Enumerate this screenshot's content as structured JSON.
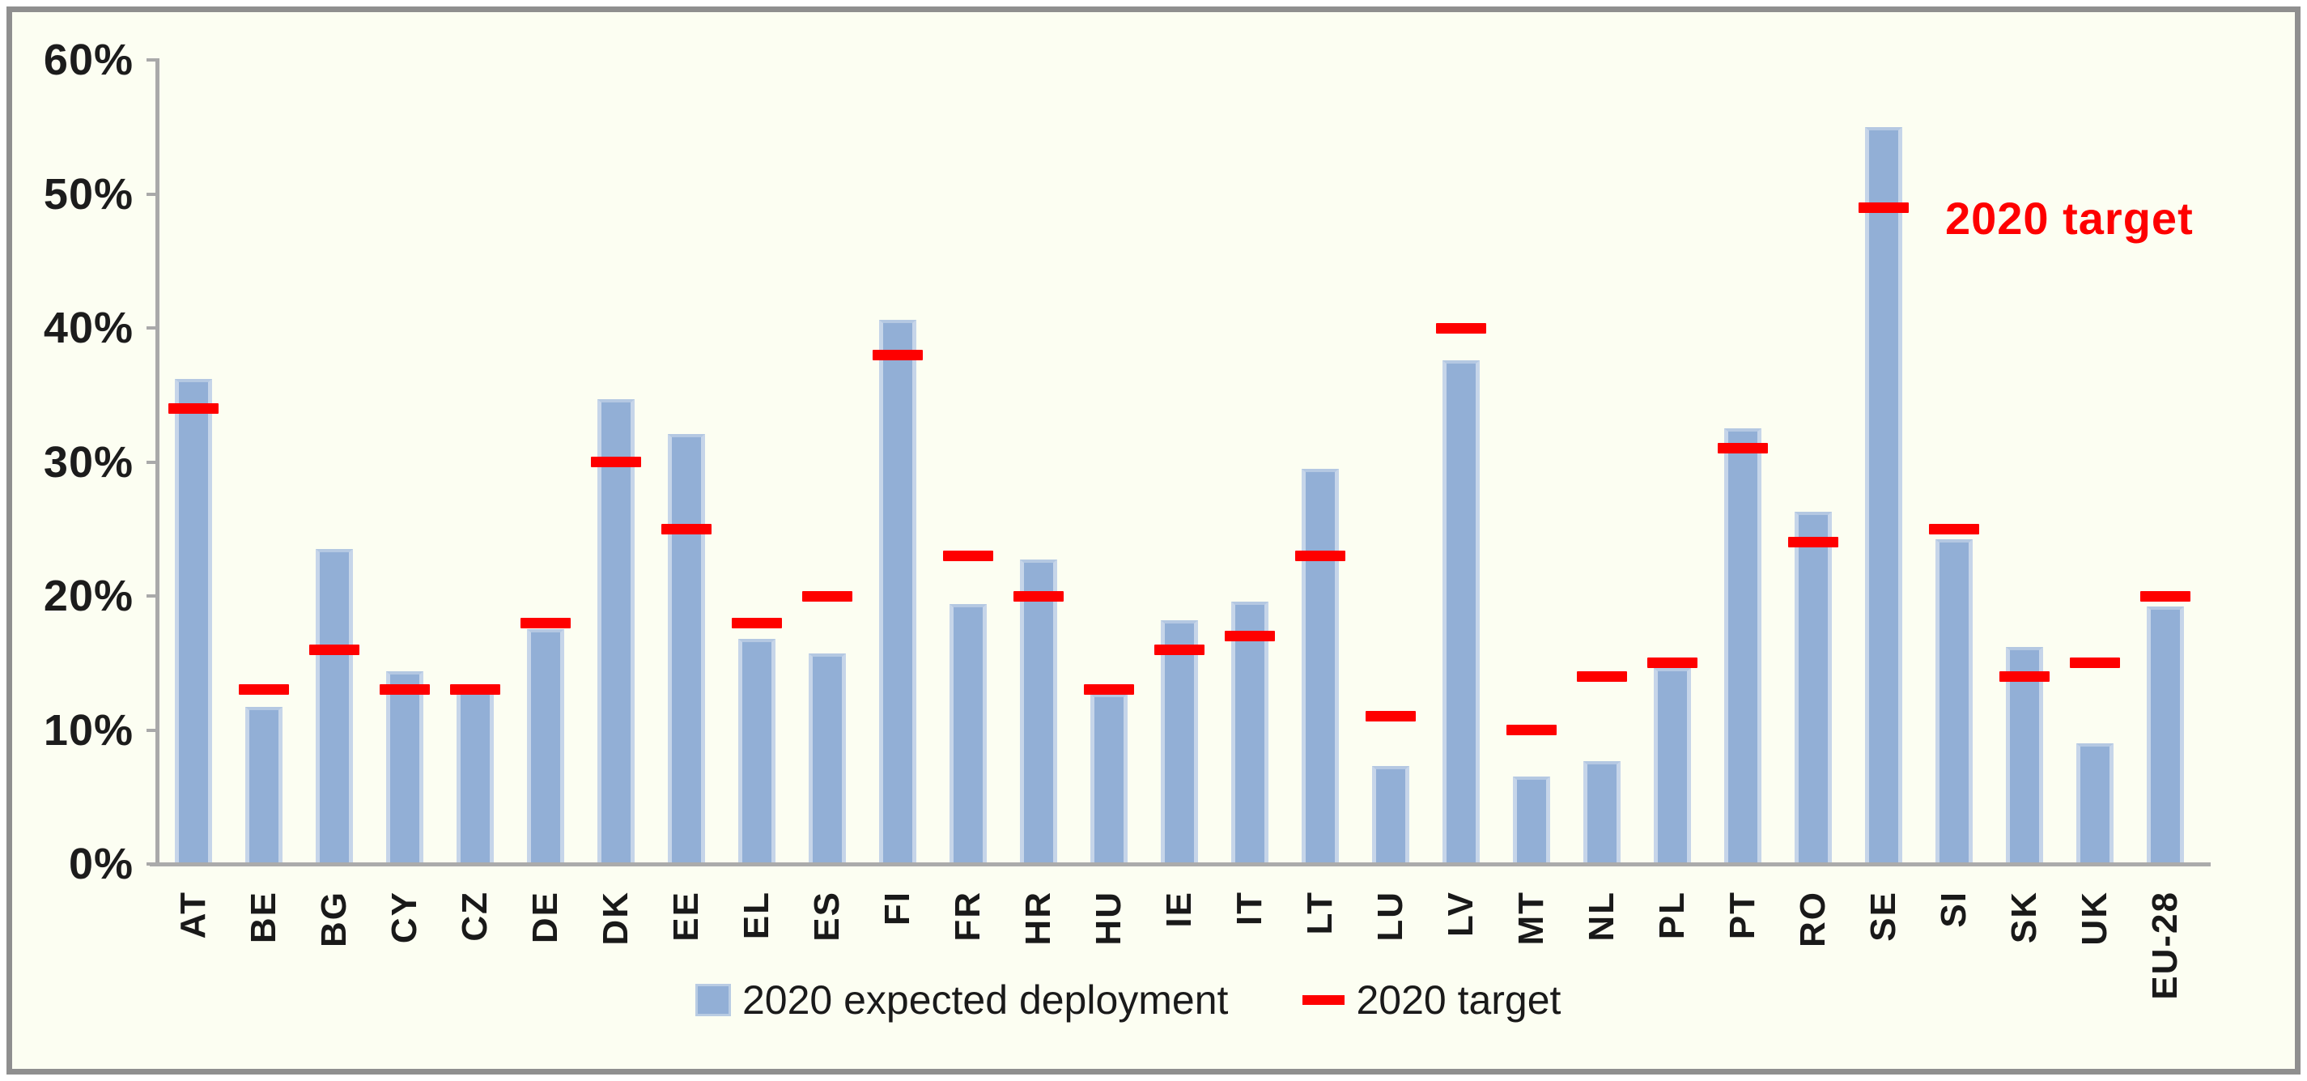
{
  "chart_data": {
    "type": "bar",
    "categories": [
      "AT",
      "BE",
      "BG",
      "CY",
      "CZ",
      "DE",
      "DK",
      "EE",
      "EL",
      "ES",
      "FI",
      "FR",
      "HR",
      "HU",
      "IE",
      "IT",
      "LT",
      "LU",
      "LV",
      "MT",
      "NL",
      "PL",
      "PT",
      "RO",
      "SE",
      "SI",
      "SK",
      "UK",
      "EU-28"
    ],
    "series": [
      {
        "name": "2020 expected deployment",
        "type": "bar",
        "color": "#92afd6",
        "values": [
          36.2,
          11.7,
          23.5,
          14.4,
          12.9,
          17.5,
          34.7,
          32.1,
          16.8,
          15.7,
          40.6,
          19.4,
          22.7,
          12.7,
          18.2,
          19.6,
          29.5,
          7.3,
          37.6,
          6.5,
          7.7,
          14.6,
          32.5,
          26.3,
          55.0,
          24.2,
          16.2,
          9.0,
          19.2
        ]
      },
      {
        "name": "2020 target",
        "type": "dash-marker",
        "color": "#fe0000",
        "values": [
          34,
          13,
          16,
          13,
          13,
          18,
          30,
          25,
          18,
          20,
          38,
          23,
          20,
          13,
          16,
          17,
          23,
          11,
          40,
          10,
          14,
          15,
          31,
          24,
          49,
          25,
          14,
          15,
          20
        ]
      }
    ],
    "y_axis": {
      "min": 0,
      "max": 60,
      "tick_step": 10,
      "tick_labels": [
        "0%",
        "10%",
        "20%",
        "30%",
        "40%",
        "50%",
        "60%"
      ],
      "unit": "%"
    },
    "legend": {
      "position": "bottom"
    },
    "annotation": {
      "text": "2020 target",
      "color": "#fe0000"
    },
    "grid": false
  },
  "colors": {
    "background": "#fcfef2",
    "frame_border": "#8f8f8f",
    "axis": "#ababab",
    "bar_fill": "#92afd6",
    "bar_edge": "#c6d5e9",
    "target_red": "#fe0000",
    "text": "#1a1a1a"
  }
}
